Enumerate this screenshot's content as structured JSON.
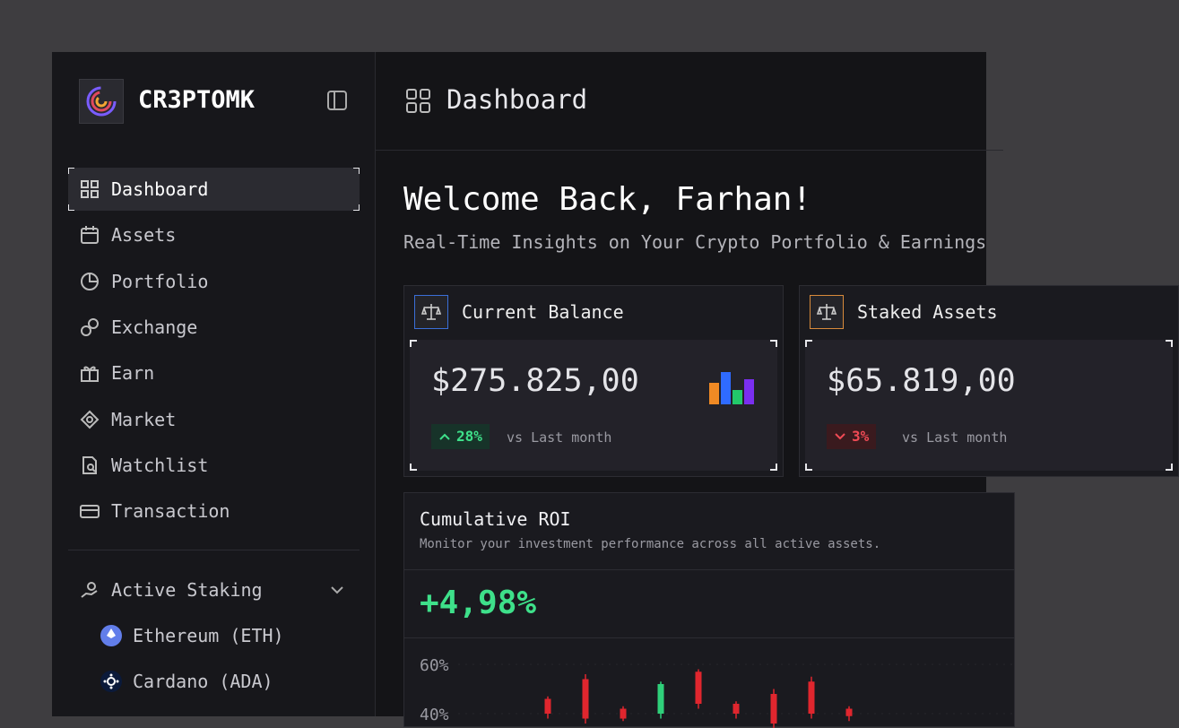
{
  "sidebar": {
    "brand": "CR3PTOMK",
    "nav": [
      "Dashboard",
      "Assets",
      "Portfolio",
      "Exchange",
      "Earn",
      "Market",
      "Watchlist",
      "Transaction"
    ],
    "active_staking": {
      "title": "Active Staking",
      "items": [
        "Ethereum (ETH)",
        "Cardano (ADA)"
      ]
    }
  },
  "header": {
    "title": "Dashboard"
  },
  "welcome": {
    "title": "Welcome Back, Farhan!",
    "subtitle": "Real-Time Insights on Your Crypto Portfolio & Earnings"
  },
  "cards": [
    {
      "title": "Current Balance",
      "amount": "$275.825,00",
      "change": "28%",
      "trend": "up",
      "change_note": "vs Last month"
    },
    {
      "title": "Staked Assets",
      "amount": "$65.819,00",
      "change": "3%",
      "trend": "down",
      "change_note": "vs Last month"
    }
  ],
  "roi": {
    "title": "Cumulative ROI",
    "subtitle": "Monitor your investment performance across all active assets.",
    "value": "+4,98%",
    "chart": {
      "type": "candlestick",
      "ylim": [
        40,
        60
      ],
      "yticks": [
        {
          "value": 60,
          "label": "60%"
        },
        {
          "value": 40,
          "label": "40%"
        }
      ],
      "up_color": "#2fd07a",
      "down_color": "#e0262e",
      "candles": [
        {
          "open": 46,
          "close": 40,
          "high": 47,
          "low": 38
        },
        {
          "open": 54,
          "close": 38,
          "high": 56,
          "low": 36
        },
        {
          "open": 42,
          "close": 38,
          "high": 43,
          "low": 37
        },
        {
          "open": 40,
          "close": 52,
          "high": 53,
          "low": 38
        },
        {
          "open": 57,
          "close": 44,
          "high": 58,
          "low": 42
        },
        {
          "open": 44,
          "close": 40,
          "high": 45,
          "low": 38
        },
        {
          "open": 48,
          "close": 36,
          "high": 50,
          "low": 34
        },
        {
          "open": 53,
          "close": 40,
          "high": 55,
          "low": 38
        },
        {
          "open": 42,
          "close": 39,
          "high": 43,
          "low": 37
        }
      ]
    }
  }
}
